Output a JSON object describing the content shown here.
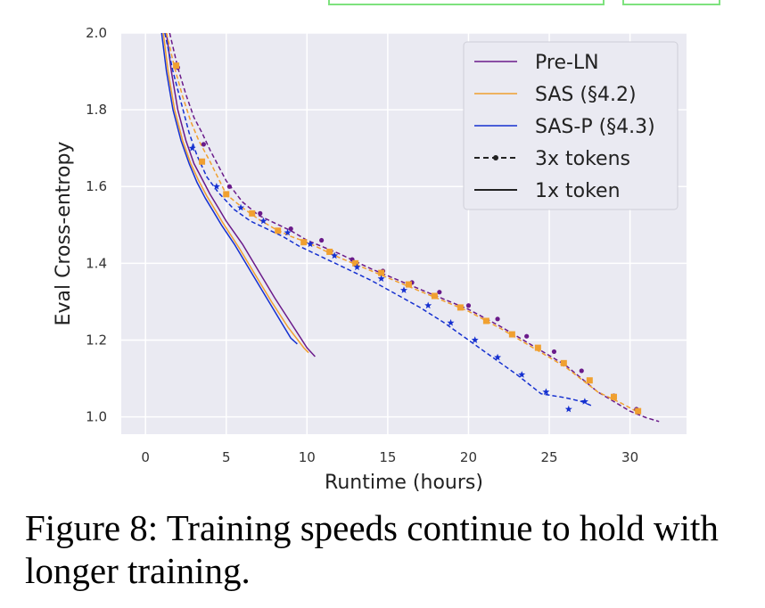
{
  "chart_data": {
    "type": "line",
    "xlabel": "Runtime (hours)",
    "ylabel": "Eval Cross-entropy",
    "xlim": [
      -1.5,
      33.5
    ],
    "ylim": [
      0.955,
      2.0
    ],
    "xticks": [
      0,
      5,
      10,
      15,
      20,
      25,
      30
    ],
    "yticks": [
      1.0,
      1.2,
      1.4,
      1.6,
      1.8,
      2.0
    ],
    "ytick_labels": [
      "1.0",
      "1.2",
      "1.4",
      "1.6",
      "1.8",
      "2.0"
    ],
    "grid": true,
    "legend_position": "upper-right",
    "colors": {
      "Pre-LN": "#6a1a8a",
      "SAS (§4.2)": "#f0a030",
      "SAS-P (§4.3)": "#1530d0"
    },
    "legend": [
      "Pre-LN",
      "SAS (§4.2)",
      "SAS-P (§4.3)",
      "3x tokens",
      "1x token"
    ],
    "series": [
      {
        "name": "Pre-LN",
        "style": "solid",
        "marker": "none",
        "x": [
          1.3,
          1.6,
          2.0,
          2.5,
          3.0,
          3.5,
          4.0,
          4.5,
          5.0,
          6.0,
          7.0,
          8.0,
          9.0,
          10.0,
          10.5
        ],
        "y": [
          2.0,
          1.9,
          1.8,
          1.72,
          1.66,
          1.62,
          1.58,
          1.545,
          1.51,
          1.45,
          1.38,
          1.31,
          1.245,
          1.18,
          1.157
        ]
      },
      {
        "name": "SAS (§4.2)",
        "style": "solid",
        "marker": "none",
        "x": [
          1.1,
          1.4,
          1.8,
          2.3,
          2.8,
          3.3,
          3.8,
          4.3,
          4.8,
          5.8,
          6.8,
          7.8,
          8.8,
          9.8,
          10.1
        ],
        "y": [
          2.0,
          1.9,
          1.8,
          1.72,
          1.66,
          1.615,
          1.575,
          1.54,
          1.505,
          1.44,
          1.37,
          1.3,
          1.235,
          1.18,
          1.167
        ]
      },
      {
        "name": "SAS-P (§4.3)",
        "style": "solid",
        "marker": "none",
        "x": [
          1.0,
          1.3,
          1.7,
          2.2,
          2.7,
          3.2,
          3.7,
          4.2,
          4.7,
          5.5,
          6.5,
          7.5,
          8.5,
          9.0,
          9.4
        ],
        "y": [
          2.0,
          1.9,
          1.8,
          1.72,
          1.66,
          1.61,
          1.57,
          1.535,
          1.5,
          1.45,
          1.38,
          1.31,
          1.24,
          1.205,
          1.19
        ]
      },
      {
        "name": "Pre-LN",
        "style": "dashed",
        "marker": "dot",
        "x": [
          1.5,
          2.0,
          2.5,
          3.0,
          3.5,
          4.0,
          5.0,
          6.0,
          7.0,
          8.0,
          9.0,
          10.0,
          12.0,
          14.0,
          16.0,
          18.0,
          20.0,
          22.0,
          24.0,
          26.0,
          28.0,
          30.0,
          31.0,
          31.8
        ],
        "y": [
          2.0,
          1.91,
          1.84,
          1.78,
          1.74,
          1.695,
          1.615,
          1.56,
          1.525,
          1.505,
          1.485,
          1.46,
          1.425,
          1.385,
          1.35,
          1.315,
          1.28,
          1.235,
          1.185,
          1.135,
          1.065,
          1.015,
          0.998,
          0.988
        ],
        "markers_x": [
          2.0,
          3.6,
          5.2,
          7.1,
          9.0,
          10.9,
          12.8,
          14.7,
          16.5,
          18.2,
          20.0,
          21.8,
          23.6,
          25.3,
          27.0,
          29.0,
          30.4
        ],
        "markers_y": [
          1.91,
          1.71,
          1.6,
          1.53,
          1.49,
          1.46,
          1.41,
          1.38,
          1.35,
          1.325,
          1.29,
          1.255,
          1.21,
          1.17,
          1.12,
          1.055,
          1.02
        ]
      },
      {
        "name": "SAS (§4.2)",
        "style": "dashed",
        "marker": "square",
        "x": [
          1.3,
          1.8,
          2.3,
          2.8,
          3.3,
          4.0,
          5.0,
          6.0,
          7.0,
          8.0,
          9.0,
          10.0,
          12.0,
          14.0,
          16.0,
          18.0,
          20.0,
          22.0,
          24.0,
          26.0,
          28.0,
          29.5,
          30.5
        ],
        "y": [
          2.0,
          1.91,
          1.835,
          1.77,
          1.72,
          1.665,
          1.58,
          1.545,
          1.515,
          1.49,
          1.47,
          1.455,
          1.415,
          1.38,
          1.345,
          1.31,
          1.275,
          1.23,
          1.18,
          1.13,
          1.065,
          1.035,
          1.012
        ],
        "markers_x": [
          1.9,
          3.5,
          5.0,
          6.6,
          8.2,
          9.8,
          11.4,
          13.0,
          14.6,
          16.3,
          17.9,
          19.5,
          21.1,
          22.7,
          24.3,
          25.9,
          27.5,
          29.0,
          30.5
        ],
        "markers_y": [
          1.915,
          1.665,
          1.58,
          1.53,
          1.485,
          1.455,
          1.43,
          1.4,
          1.375,
          1.345,
          1.315,
          1.285,
          1.25,
          1.215,
          1.18,
          1.14,
          1.095,
          1.052,
          1.015
        ]
      },
      {
        "name": "SAS-P (§4.3)",
        "style": "dashed",
        "marker": "star",
        "x": [
          1.2,
          1.7,
          2.2,
          2.7,
          3.2,
          3.8,
          4.5,
          5.5,
          6.5,
          7.5,
          8.5,
          9.5,
          11.0,
          12.5,
          14.0,
          15.5,
          17.0,
          18.5,
          20.0,
          21.5,
          23.0,
          24.5,
          26.0,
          27.0,
          27.7
        ],
        "y": [
          2.0,
          1.9,
          1.82,
          1.74,
          1.68,
          1.625,
          1.585,
          1.54,
          1.51,
          1.49,
          1.47,
          1.445,
          1.415,
          1.385,
          1.355,
          1.32,
          1.285,
          1.245,
          1.2,
          1.155,
          1.11,
          1.06,
          1.05,
          1.04,
          1.028
        ],
        "markers_x": [
          2.9,
          4.4,
          5.9,
          7.3,
          8.8,
          10.2,
          11.7,
          13.1,
          14.6,
          16.0,
          17.5,
          18.9,
          20.4,
          21.8,
          23.3,
          24.8,
          26.2,
          27.2
        ],
        "markers_y": [
          1.7,
          1.6,
          1.545,
          1.51,
          1.48,
          1.45,
          1.42,
          1.39,
          1.36,
          1.33,
          1.29,
          1.245,
          1.2,
          1.155,
          1.11,
          1.065,
          1.02,
          1.04
        ]
      }
    ]
  },
  "caption": {
    "label": "Figure 8:",
    "text": "Training speeds continue to hold with longer training."
  }
}
